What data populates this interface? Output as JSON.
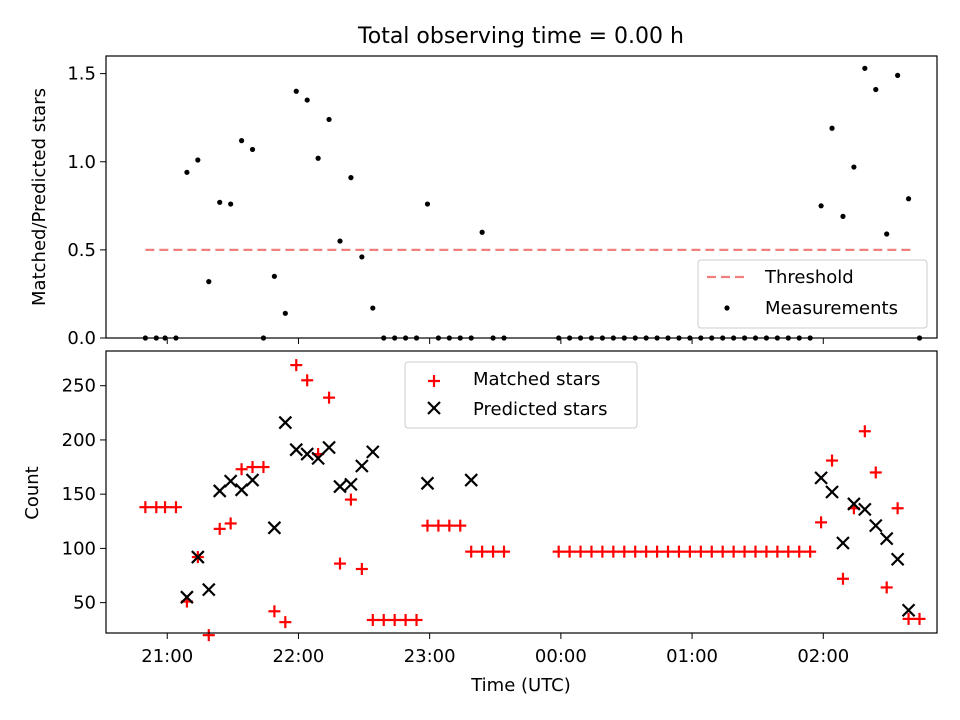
{
  "figure_title": "Total observing time = 0.00 h",
  "chart_data": [
    {
      "type": "scatter",
      "title": "Total observing time = 0.00 h",
      "xlabel": "",
      "ylabel": "Matched/Predicted stars",
      "ylim": [
        0,
        1.6
      ],
      "yticks": [
        "0.0",
        "0.5",
        "1.0",
        "1.5"
      ],
      "x_range": [
        "20:32",
        "02:52"
      ],
      "legend_position": "lower-right",
      "threshold": {
        "name": "Threshold",
        "value": 0.5,
        "x_start": "20:50",
        "x_end": "02:40",
        "color": "#f08080",
        "style": "dashed"
      },
      "series": [
        {
          "name": "Measurements",
          "color": "#000000",
          "marker": "dot",
          "x": [
            "20:50",
            "20:55",
            "20:59",
            "21:04",
            "21:09",
            "21:14",
            "21:19",
            "21:24",
            "21:29",
            "21:34",
            "21:39",
            "21:44",
            "21:49",
            "21:54",
            "21:59",
            "22:04",
            "22:09",
            "22:14",
            "22:19",
            "22:24",
            "22:29",
            "22:34",
            "22:39",
            "22:44",
            "22:49",
            "22:54",
            "22:59",
            "23:04",
            "23:09",
            "23:14",
            "23:19",
            "23:24",
            "23:29",
            "23:34",
            "23:59",
            "00:04",
            "00:09",
            "00:14",
            "00:19",
            "00:24",
            "00:29",
            "00:34",
            "00:39",
            "00:44",
            "00:49",
            "00:54",
            "00:59",
            "01:04",
            "01:09",
            "01:14",
            "01:19",
            "01:24",
            "01:29",
            "01:34",
            "01:39",
            "01:44",
            "01:49",
            "01:54",
            "01:59",
            "02:04",
            "02:09",
            "02:14",
            "02:19",
            "02:24",
            "02:29",
            "02:34",
            "02:39",
            "02:44"
          ],
          "y": [
            0,
            0,
            0,
            0,
            0.94,
            1.01,
            0.32,
            0.77,
            0.76,
            1.12,
            1.07,
            0,
            0.35,
            0.14,
            1.4,
            1.35,
            1.02,
            1.24,
            0.55,
            0.91,
            0.46,
            0.17,
            0,
            0,
            0,
            0,
            0.76,
            0,
            0,
            0,
            0,
            0.6,
            0,
            0,
            0,
            0,
            0,
            0,
            0,
            0,
            0,
            0,
            0,
            0,
            0,
            0,
            0,
            0,
            0,
            0,
            0,
            0,
            0,
            0,
            0,
            0,
            0,
            0,
            0.75,
            1.19,
            0.69,
            0.97,
            1.53,
            1.41,
            0.59,
            1.49,
            0.79,
            0
          ]
        }
      ]
    },
    {
      "type": "scatter",
      "title": "",
      "xlabel": "Time (UTC)",
      "ylabel": "Count",
      "ylim": [
        22,
        282
      ],
      "yticks": [
        "50",
        "100",
        "150",
        "200",
        "250"
      ],
      "xticks": [
        "21:00",
        "22:00",
        "23:00",
        "00:00",
        "01:00",
        "02:00"
      ],
      "x_range": [
        "20:32",
        "02:52"
      ],
      "legend_position": "upper-center",
      "series": [
        {
          "name": "Matched stars",
          "color": "#ff0000",
          "marker": "plus",
          "x": [
            "20:50",
            "20:55",
            "20:59",
            "21:04",
            "21:09",
            "21:14",
            "21:19",
            "21:24",
            "21:29",
            "21:34",
            "21:39",
            "21:44",
            "21:49",
            "21:54",
            "21:59",
            "22:04",
            "22:09",
            "22:14",
            "22:19",
            "22:24",
            "22:29",
            "22:34",
            "22:39",
            "22:44",
            "22:49",
            "22:54",
            "22:59",
            "23:04",
            "23:09",
            "23:14",
            "23:19",
            "23:24",
            "23:29",
            "23:34",
            "23:59",
            "00:04",
            "00:09",
            "00:14",
            "00:19",
            "00:24",
            "00:29",
            "00:34",
            "00:39",
            "00:44",
            "00:49",
            "00:54",
            "00:59",
            "01:04",
            "01:09",
            "01:14",
            "01:19",
            "01:24",
            "01:29",
            "01:34",
            "01:39",
            "01:44",
            "01:49",
            "01:54",
            "01:59",
            "02:04",
            "02:09",
            "02:14",
            "02:19",
            "02:24",
            "02:29",
            "02:34",
            "02:39",
            "02:44"
          ],
          "y": [
            138,
            138,
            138,
            138,
            51,
            92,
            20,
            118,
            123,
            173,
            175,
            175,
            42,
            32,
            269,
            255,
            187,
            239,
            86,
            145,
            81,
            34,
            34,
            34,
            34,
            34,
            121,
            121,
            121,
            121,
            97,
            97,
            97,
            97,
            97,
            97,
            97,
            97,
            97,
            97,
            97,
            97,
            97,
            97,
            97,
            97,
            97,
            97,
            97,
            97,
            97,
            97,
            97,
            97,
            97,
            97,
            97,
            97,
            124,
            181,
            72,
            137,
            208,
            170,
            64,
            137,
            35,
            35
          ]
        },
        {
          "name": "Predicted stars",
          "color": "#000000",
          "marker": "cross",
          "x": [
            "21:09",
            "21:14",
            "21:19",
            "21:24",
            "21:29",
            "21:34",
            "21:39",
            "21:49",
            "21:54",
            "21:59",
            "22:04",
            "22:09",
            "22:14",
            "22:19",
            "22:24",
            "22:29",
            "22:34",
            "22:59",
            "23:19",
            "01:59",
            "02:04",
            "02:09",
            "02:14",
            "02:19",
            "02:24",
            "02:29",
            "02:34",
            "02:39"
          ],
          "y": [
            55,
            92,
            62,
            153,
            162,
            154,
            163,
            119,
            216,
            191,
            187,
            183,
            193,
            157,
            159,
            176,
            189,
            160,
            163,
            165,
            152,
            105,
            141,
            136,
            121,
            109,
            90,
            43
          ]
        }
      ]
    }
  ]
}
